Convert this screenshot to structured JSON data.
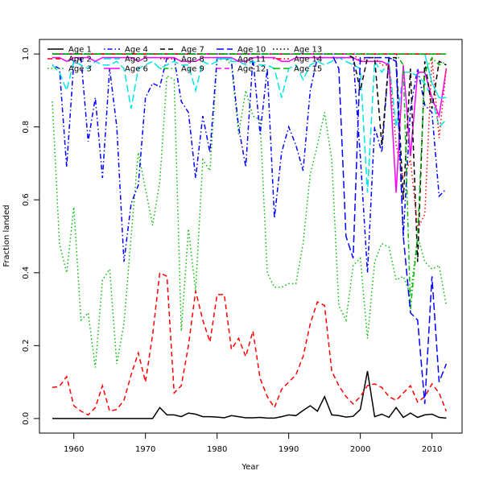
{
  "chart_data": {
    "type": "line",
    "xlabel": "Year",
    "ylabel": "Fraction landed",
    "xlim": [
      1955.2,
      2014.2
    ],
    "ylim": [
      -0.04,
      1.04
    ],
    "x_ticks": [
      1960,
      1970,
      1980,
      1990,
      2000,
      2010
    ],
    "y_ticks": [
      0.0,
      0.2,
      0.4,
      0.6,
      0.8,
      1.0
    ],
    "x_tick_labels": [
      "1960",
      "1970",
      "1980",
      "1990",
      "2000",
      "2010"
    ],
    "y_tick_labels": [
      "0.0",
      "0.2",
      "0.4",
      "0.6",
      "0.8",
      "1.0"
    ],
    "legend_position": "top-left, inside plot",
    "x": [
      1957,
      1958,
      1959,
      1960,
      1961,
      1962,
      1963,
      1964,
      1965,
      1966,
      1967,
      1968,
      1969,
      1970,
      1971,
      1972,
      1973,
      1974,
      1975,
      1976,
      1977,
      1978,
      1979,
      1980,
      1981,
      1982,
      1983,
      1984,
      1985,
      1986,
      1987,
      1988,
      1989,
      1990,
      1991,
      1992,
      1993,
      1994,
      1995,
      1996,
      1997,
      1998,
      1999,
      2000,
      2001,
      2002,
      2003,
      2004,
      2005,
      2006,
      2007,
      2008,
      2009,
      2010,
      2011,
      2012
    ],
    "series": [
      {
        "name": "Age 1",
        "color": "#000000",
        "dash": "solid",
        "values": [
          0.0,
          0.0,
          0.0,
          0.0,
          0.0,
          0.0,
          0.0,
          0.0,
          0.0,
          0.0,
          0.0,
          0.0,
          0.0,
          0.0,
          0.0,
          0.03,
          0.01,
          0.01,
          0.005,
          0.015,
          0.012,
          0.005,
          0.005,
          0.004,
          0.002,
          0.008,
          0.005,
          0.002,
          0.002,
          0.003,
          0.001,
          0.001,
          0.005,
          0.01,
          0.008,
          0.022,
          0.035,
          0.02,
          0.06,
          0.01,
          0.008,
          0.004,
          0.006,
          0.025,
          0.13,
          0.005,
          0.012,
          0.003,
          0.03,
          0.003,
          0.015,
          0.003,
          0.01,
          0.012,
          0.003,
          0.001
        ]
      },
      {
        "name": "Age 2",
        "color": "#ff0000",
        "dash": "dashed",
        "values": [
          0.085,
          0.088,
          0.115,
          0.035,
          0.02,
          0.01,
          0.03,
          0.09,
          0.02,
          0.025,
          0.05,
          0.12,
          0.18,
          0.1,
          0.23,
          0.4,
          0.39,
          0.07,
          0.09,
          0.2,
          0.35,
          0.27,
          0.21,
          0.34,
          0.34,
          0.19,
          0.22,
          0.17,
          0.24,
          0.11,
          0.06,
          0.03,
          0.08,
          0.1,
          0.12,
          0.17,
          0.26,
          0.32,
          0.31,
          0.13,
          0.09,
          0.06,
          0.04,
          0.06,
          0.09,
          0.095,
          0.085,
          0.06,
          0.05,
          0.07,
          0.09,
          0.045,
          0.06,
          0.095,
          0.07,
          0.02
        ]
      },
      {
        "name": "Age 3",
        "color": "#00bb00",
        "dash": "dotted",
        "values": [
          0.87,
          0.48,
          0.4,
          0.58,
          0.27,
          0.29,
          0.14,
          0.38,
          0.41,
          0.15,
          0.26,
          0.5,
          0.73,
          0.63,
          0.53,
          0.65,
          0.94,
          0.93,
          0.24,
          0.52,
          0.35,
          0.71,
          0.68,
          0.98,
          0.99,
          0.97,
          0.78,
          0.9,
          0.83,
          0.82,
          0.4,
          0.36,
          0.36,
          0.37,
          0.37,
          0.48,
          0.67,
          0.75,
          0.84,
          0.71,
          0.31,
          0.27,
          0.42,
          0.44,
          0.22,
          0.43,
          0.48,
          0.47,
          0.38,
          0.39,
          0.34,
          0.5,
          0.43,
          0.41,
          0.42,
          0.31
        ]
      },
      {
        "name": "Age 4",
        "color": "#0000ff",
        "dash": "dashdot",
        "values": [
          0.97,
          0.96,
          0.69,
          0.98,
          0.99,
          0.76,
          0.88,
          0.66,
          0.96,
          0.8,
          0.43,
          0.59,
          0.64,
          0.88,
          0.92,
          0.91,
          0.99,
          0.99,
          0.87,
          0.84,
          0.66,
          0.83,
          0.73,
          0.99,
          0.99,
          0.98,
          0.8,
          0.69,
          0.99,
          0.78,
          0.96,
          0.55,
          0.73,
          0.8,
          0.75,
          0.68,
          0.9,
          0.99,
          0.99,
          0.99,
          0.99,
          0.99,
          0.99,
          0.72,
          0.4,
          0.8,
          0.73,
          0.99,
          0.98,
          0.5,
          0.85,
          0.96,
          0.86,
          0.84,
          0.61,
          0.63
        ]
      },
      {
        "name": "Age 5",
        "color": "#00e5e5",
        "dash": "longdash",
        "values": [
          0.97,
          0.95,
          0.9,
          0.98,
          0.97,
          0.96,
          0.98,
          0.97,
          0.97,
          0.98,
          0.96,
          0.85,
          0.96,
          0.97,
          0.98,
          0.96,
          0.97,
          0.98,
          0.97,
          0.97,
          0.9,
          0.98,
          0.97,
          0.98,
          0.99,
          0.98,
          0.98,
          0.97,
          0.98,
          0.97,
          0.97,
          0.96,
          0.88,
          0.96,
          0.97,
          0.93,
          0.97,
          0.98,
          0.97,
          0.98,
          0.99,
          0.98,
          0.97,
          0.96,
          0.62,
          0.98,
          0.95,
          0.98,
          0.8,
          0.95,
          0.95,
          0.94,
          0.92,
          0.88,
          0.8,
          0.82
        ]
      },
      {
        "name": "Age 6",
        "color": "#ff00ff",
        "dash": "solid",
        "values": [
          0.99,
          0.99,
          0.98,
          0.99,
          0.99,
          0.99,
          0.98,
          0.99,
          0.99,
          0.99,
          0.99,
          0.99,
          0.98,
          0.99,
          0.99,
          0.99,
          0.99,
          0.99,
          0.98,
          0.98,
          0.98,
          0.99,
          0.99,
          0.99,
          0.99,
          0.99,
          0.98,
          0.98,
          0.99,
          0.99,
          0.99,
          0.99,
          0.98,
          0.98,
          0.99,
          0.99,
          0.99,
          0.99,
          0.99,
          0.99,
          0.99,
          0.99,
          0.99,
          0.98,
          0.98,
          0.98,
          0.98,
          0.97,
          0.62,
          0.97,
          0.72,
          0.95,
          0.95,
          0.88,
          0.83,
          0.96
        ]
      },
      {
        "name": "Age 7",
        "color": "#000000",
        "dash": "dashed",
        "values": [
          1.0,
          1.0,
          1.0,
          1.0,
          1.0,
          1.0,
          1.0,
          1.0,
          1.0,
          1.0,
          1.0,
          1.0,
          1.0,
          1.0,
          1.0,
          1.0,
          1.0,
          1.0,
          1.0,
          1.0,
          1.0,
          1.0,
          1.0,
          1.0,
          1.0,
          1.0,
          1.0,
          1.0,
          1.0,
          1.0,
          1.0,
          1.0,
          1.0,
          1.0,
          1.0,
          1.0,
          1.0,
          1.0,
          1.0,
          1.0,
          1.0,
          1.0,
          0.99,
          0.9,
          0.99,
          0.99,
          0.75,
          0.99,
          0.99,
          0.6,
          0.96,
          0.43,
          0.98,
          0.85,
          0.98,
          0.97
        ]
      },
      {
        "name": "Age 8",
        "color": "#ff0000",
        "dash": "dotted",
        "values": [
          1.0,
          1.0,
          1.0,
          1.0,
          1.0,
          1.0,
          1.0,
          1.0,
          1.0,
          1.0,
          1.0,
          1.0,
          1.0,
          1.0,
          1.0,
          1.0,
          1.0,
          1.0,
          1.0,
          1.0,
          1.0,
          1.0,
          1.0,
          1.0,
          1.0,
          1.0,
          1.0,
          1.0,
          1.0,
          1.0,
          1.0,
          1.0,
          1.0,
          1.0,
          1.0,
          1.0,
          1.0,
          1.0,
          1.0,
          1.0,
          1.0,
          1.0,
          1.0,
          0.98,
          0.99,
          0.99,
          0.97,
          0.97,
          0.75,
          0.66,
          0.71,
          0.52,
          0.56,
          0.99,
          0.77,
          0.96
        ]
      },
      {
        "name": "Age 9",
        "color": "#00bb00",
        "dash": "dashdot",
        "values": [
          1.0,
          1.0,
          1.0,
          1.0,
          1.0,
          1.0,
          1.0,
          1.0,
          1.0,
          1.0,
          1.0,
          1.0,
          1.0,
          1.0,
          1.0,
          1.0,
          1.0,
          1.0,
          1.0,
          1.0,
          1.0,
          1.0,
          1.0,
          1.0,
          1.0,
          1.0,
          1.0,
          1.0,
          1.0,
          1.0,
          1.0,
          1.0,
          1.0,
          1.0,
          1.0,
          1.0,
          1.0,
          1.0,
          1.0,
          1.0,
          1.0,
          1.0,
          1.0,
          1.0,
          1.0,
          1.0,
          1.0,
          1.0,
          1.0,
          0.97,
          0.3,
          0.5,
          0.95,
          0.99,
          0.97,
          0.98
        ]
      },
      {
        "name": "Age 10",
        "color": "#0000ff",
        "dash": "longdash",
        "values": [
          1.0,
          1.0,
          1.0,
          1.0,
          1.0,
          1.0,
          1.0,
          1.0,
          1.0,
          1.0,
          1.0,
          1.0,
          1.0,
          1.0,
          1.0,
          1.0,
          1.0,
          1.0,
          1.0,
          1.0,
          1.0,
          1.0,
          1.0,
          1.0,
          1.0,
          1.0,
          1.0,
          1.0,
          1.0,
          1.0,
          1.0,
          1.0,
          1.0,
          1.0,
          1.0,
          1.0,
          1.0,
          1.0,
          1.0,
          1.0,
          0.96,
          0.5,
          0.44,
          0.99,
          0.99,
          0.99,
          0.99,
          0.99,
          0.98,
          0.5,
          0.29,
          0.27,
          0.04,
          0.39,
          0.1,
          0.15
        ]
      },
      {
        "name": "Age 11",
        "color": "#00e5e5",
        "dash": "solid",
        "values": [
          1.0,
          1.0,
          1.0,
          1.0,
          1.0,
          1.0,
          1.0,
          1.0,
          1.0,
          1.0,
          1.0,
          1.0,
          1.0,
          1.0,
          1.0,
          1.0,
          1.0,
          1.0,
          1.0,
          1.0,
          1.0,
          1.0,
          1.0,
          1.0,
          1.0,
          1.0,
          1.0,
          1.0,
          1.0,
          1.0,
          1.0,
          1.0,
          1.0,
          1.0,
          1.0,
          1.0,
          1.0,
          1.0,
          1.0,
          1.0,
          1.0,
          1.0,
          1.0,
          1.0,
          1.0,
          1.0,
          1.0,
          1.0,
          1.0,
          1.0,
          1.0,
          1.0,
          1.0,
          0.92,
          0.88,
          0.88
        ]
      },
      {
        "name": "Age 12",
        "color": "#ff00ff",
        "dash": "dashed",
        "values": [
          1.0,
          1.0,
          1.0,
          1.0,
          1.0,
          1.0,
          1.0,
          1.0,
          1.0,
          1.0,
          1.0,
          1.0,
          1.0,
          1.0,
          1.0,
          1.0,
          1.0,
          1.0,
          1.0,
          1.0,
          1.0,
          1.0,
          1.0,
          1.0,
          1.0,
          1.0,
          1.0,
          1.0,
          1.0,
          1.0,
          1.0,
          1.0,
          1.0,
          1.0,
          1.0,
          1.0,
          1.0,
          1.0,
          1.0,
          1.0,
          1.0,
          1.0,
          1.0,
          1.0,
          1.0,
          1.0,
          1.0,
          1.0,
          1.0,
          1.0,
          1.0,
          1.0,
          1.0,
          1.0,
          1.0,
          1.0
        ]
      },
      {
        "name": "Age 13",
        "color": "#000000",
        "dash": "dotted",
        "values": [
          1.0,
          1.0,
          1.0,
          1.0,
          1.0,
          1.0,
          1.0,
          1.0,
          1.0,
          1.0,
          1.0,
          1.0,
          1.0,
          1.0,
          1.0,
          1.0,
          1.0,
          1.0,
          1.0,
          1.0,
          1.0,
          1.0,
          1.0,
          1.0,
          1.0,
          1.0,
          1.0,
          1.0,
          1.0,
          1.0,
          1.0,
          1.0,
          1.0,
          1.0,
          1.0,
          1.0,
          1.0,
          1.0,
          1.0,
          1.0,
          1.0,
          1.0,
          1.0,
          1.0,
          1.0,
          1.0,
          1.0,
          1.0,
          1.0,
          1.0,
          1.0,
          1.0,
          1.0,
          1.0,
          1.0,
          1.0
        ]
      },
      {
        "name": "Age 14",
        "color": "#ff0000",
        "dash": "dashdot",
        "values": [
          1.0,
          1.0,
          1.0,
          1.0,
          1.0,
          1.0,
          1.0,
          1.0,
          1.0,
          1.0,
          1.0,
          1.0,
          1.0,
          1.0,
          1.0,
          1.0,
          1.0,
          1.0,
          1.0,
          1.0,
          1.0,
          1.0,
          1.0,
          1.0,
          1.0,
          1.0,
          1.0,
          1.0,
          1.0,
          1.0,
          1.0,
          1.0,
          1.0,
          1.0,
          1.0,
          1.0,
          1.0,
          1.0,
          1.0,
          1.0,
          1.0,
          1.0,
          1.0,
          1.0,
          1.0,
          1.0,
          1.0,
          1.0,
          1.0,
          1.0,
          1.0,
          1.0,
          1.0,
          1.0,
          1.0,
          1.0
        ]
      },
      {
        "name": "Age 15",
        "color": "#00bb00",
        "dash": "longdash",
        "values": [
          1.0,
          1.0,
          1.0,
          1.0,
          1.0,
          1.0,
          1.0,
          1.0,
          1.0,
          1.0,
          1.0,
          1.0,
          1.0,
          1.0,
          1.0,
          1.0,
          1.0,
          1.0,
          1.0,
          1.0,
          1.0,
          1.0,
          1.0,
          1.0,
          1.0,
          1.0,
          1.0,
          1.0,
          1.0,
          1.0,
          1.0,
          1.0,
          1.0,
          1.0,
          1.0,
          1.0,
          1.0,
          1.0,
          1.0,
          1.0,
          1.0,
          1.0,
          1.0,
          1.0,
          1.0,
          1.0,
          1.0,
          1.0,
          1.0,
          1.0,
          1.0,
          1.0,
          1.0,
          1.0,
          1.0,
          1.0
        ]
      }
    ]
  }
}
